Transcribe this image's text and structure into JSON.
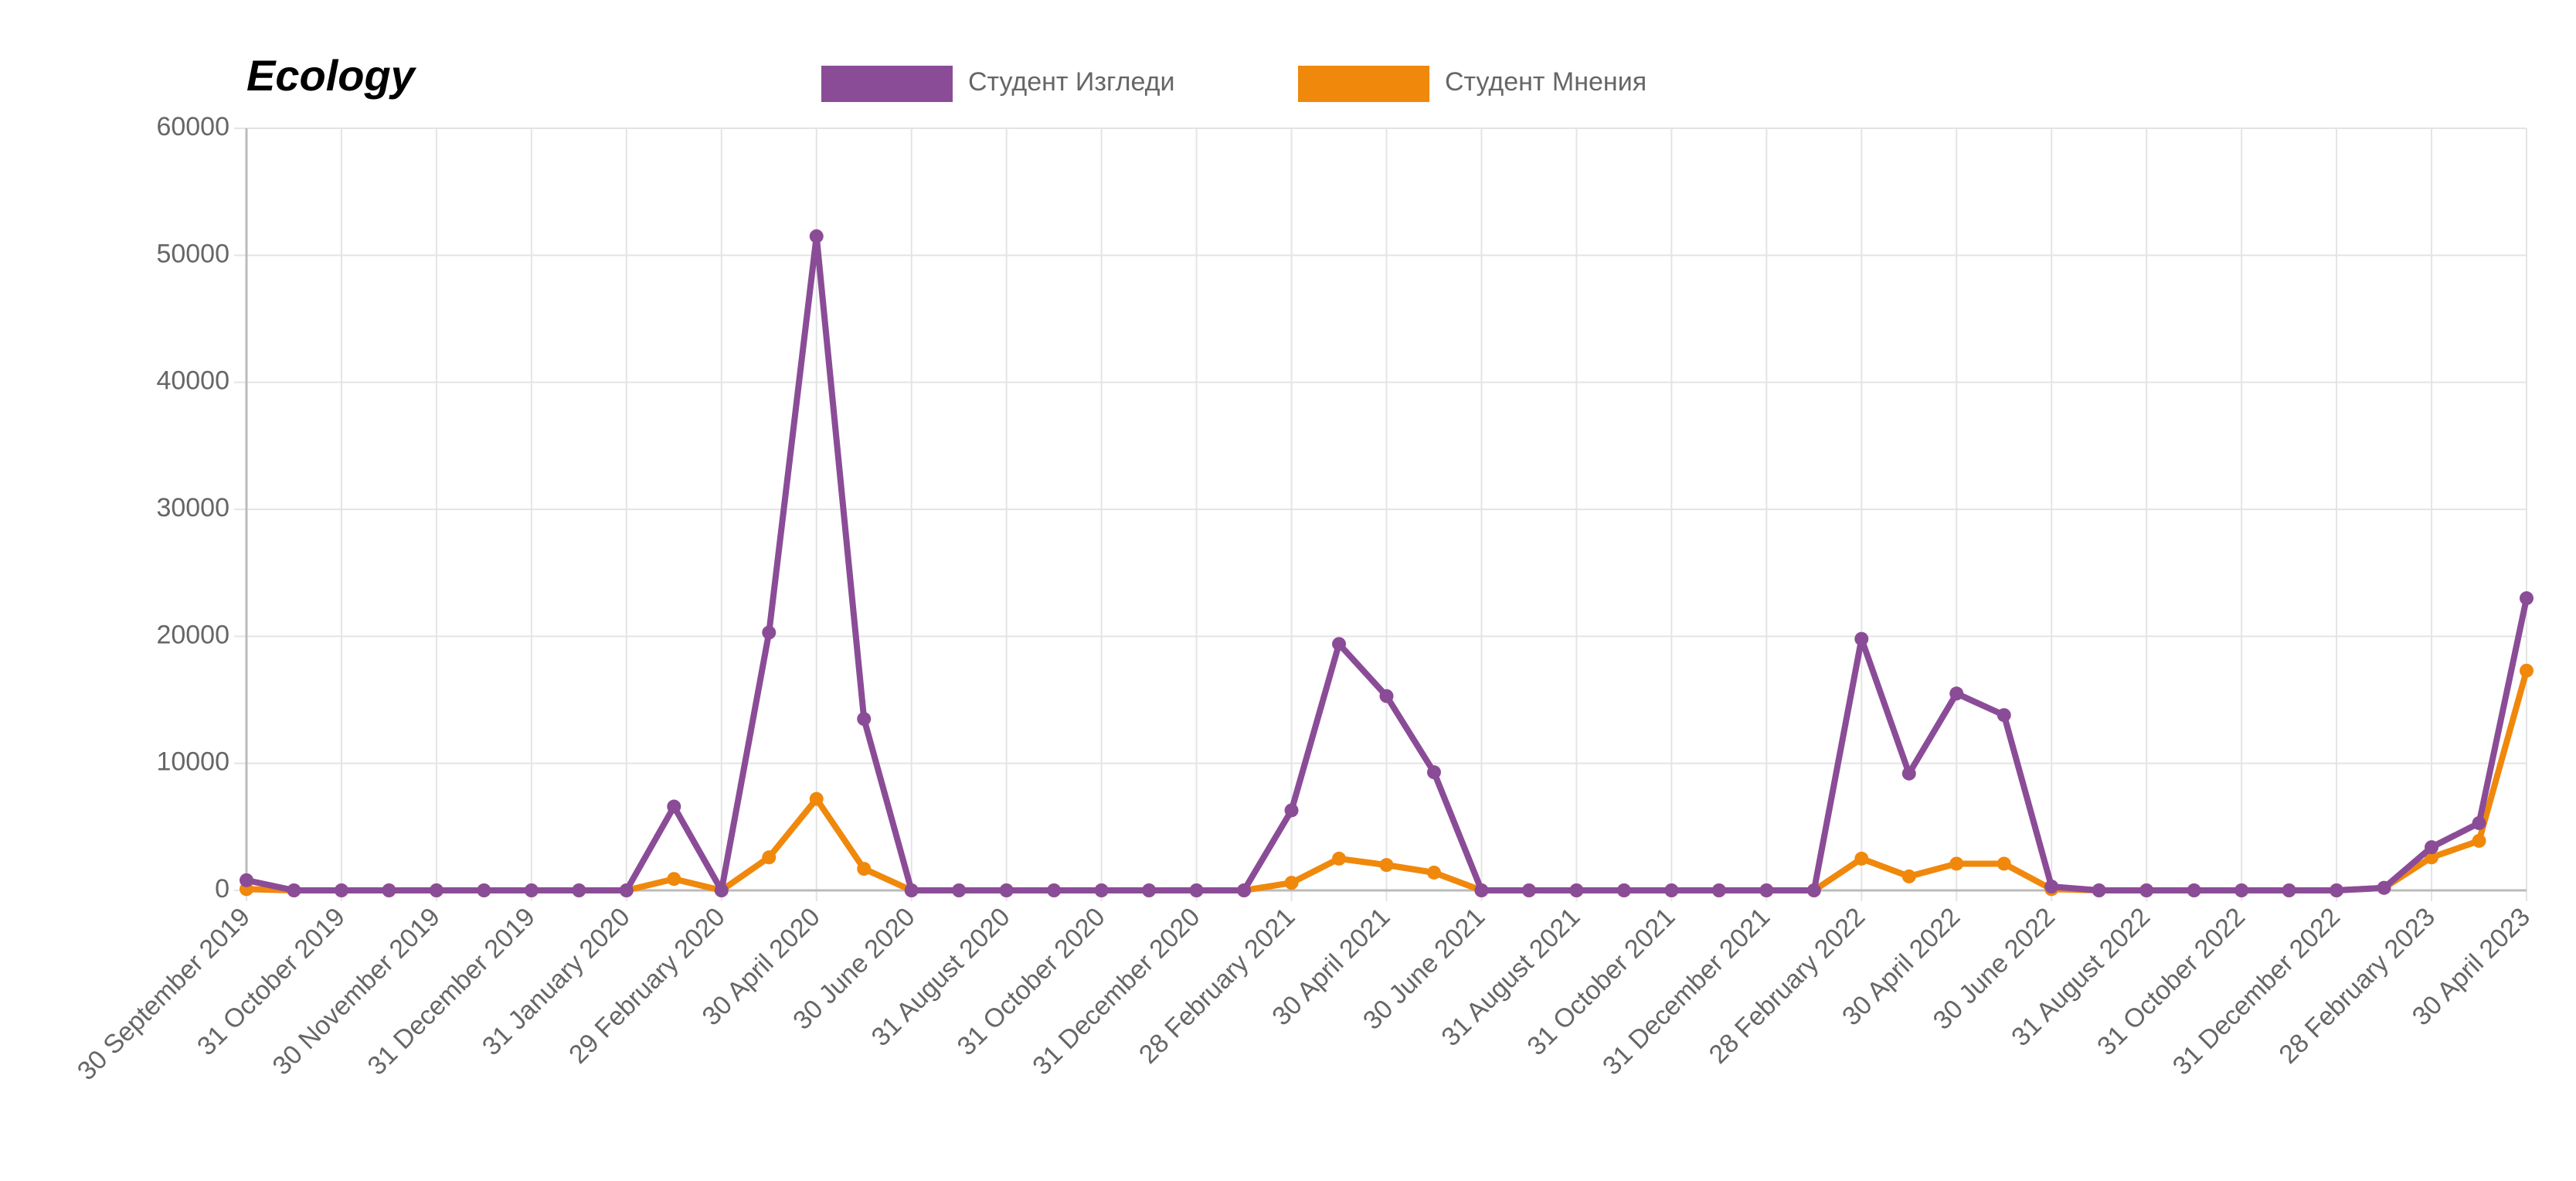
{
  "chart_data": {
    "type": "line",
    "title": "Ecology",
    "categories": [
      "30 September 2019",
      null,
      "31 October 2019",
      null,
      "30 November 2019",
      null,
      "31 December 2019",
      null,
      "31 January 2020",
      null,
      "29 February 2020",
      null,
      "30 April 2020",
      null,
      "30 June 2020",
      null,
      "31 August 2020",
      null,
      "31 October 2020",
      null,
      "31 December 2020",
      null,
      "28 February 2021",
      null,
      "30 April 2021",
      null,
      "30 June 2021",
      null,
      "31 August 2021",
      null,
      "31 October 2021",
      null,
      "31 December 2021",
      null,
      "28 February 2022",
      null,
      "30 April 2022",
      null,
      "30 June 2022",
      null,
      "31 August 2022",
      null,
      "31 October 2022",
      null,
      "31 December 2022",
      null,
      "28 February 2023",
      null,
      "30 April 2023"
    ],
    "series": [
      {
        "name": "Студент Изгледи",
        "color": "#8b4c97",
        "values": [
          800,
          0,
          0,
          0,
          0,
          0,
          0,
          0,
          0,
          6600,
          0,
          20300,
          51500,
          13500,
          0,
          0,
          0,
          0,
          0,
          0,
          0,
          0,
          6300,
          19400,
          15300,
          9300,
          0,
          0,
          0,
          0,
          0,
          0,
          0,
          0,
          19800,
          9200,
          15500,
          13800,
          300,
          0,
          0,
          0,
          0,
          0,
          0,
          200,
          3400,
          5300,
          23000
        ]
      },
      {
        "name": "Студент Мнения",
        "color": "#f0880c",
        "values": [
          100,
          0,
          0,
          0,
          0,
          0,
          0,
          0,
          0,
          900,
          0,
          2600,
          7200,
          1700,
          0,
          0,
          0,
          0,
          0,
          0,
          0,
          0,
          600,
          2500,
          2000,
          1400,
          0,
          0,
          0,
          0,
          0,
          0,
          0,
          0,
          2500,
          1100,
          2100,
          2100,
          100,
          0,
          0,
          0,
          0,
          0,
          0,
          200,
          2600,
          3900,
          17300
        ]
      }
    ],
    "ylim": [
      0,
      60000
    ],
    "yticks": [
      0,
      10000,
      20000,
      30000,
      40000,
      50000,
      60000
    ],
    "grid": true,
    "legend": "top"
  }
}
